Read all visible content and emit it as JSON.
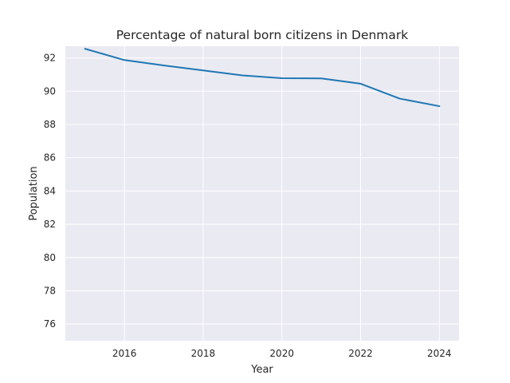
{
  "chart_data": {
    "type": "line",
    "title": "Percentage of natural born citizens in Denmark",
    "xlabel": "Year",
    "ylabel": "Population",
    "x": [
      2015,
      2016,
      2017,
      2018,
      2019,
      2020,
      2021,
      2022,
      2023,
      2024
    ],
    "series": [
      {
        "values": [
          92.55,
          91.87,
          91.55,
          91.25,
          90.95,
          90.78,
          90.77,
          90.45,
          89.55,
          89.1
        ],
        "color": "#1f77b4"
      }
    ],
    "xlim": [
      2014.5,
      2024.5
    ],
    "ylim": [
      75,
      92.7
    ],
    "xticks": [
      2016,
      2018,
      2020,
      2022,
      2024
    ],
    "yticks": [
      76,
      78,
      80,
      82,
      84,
      86,
      88,
      90,
      92
    ],
    "grid": true,
    "background_color": "#eaeaf2",
    "grid_color": "#ffffff"
  }
}
